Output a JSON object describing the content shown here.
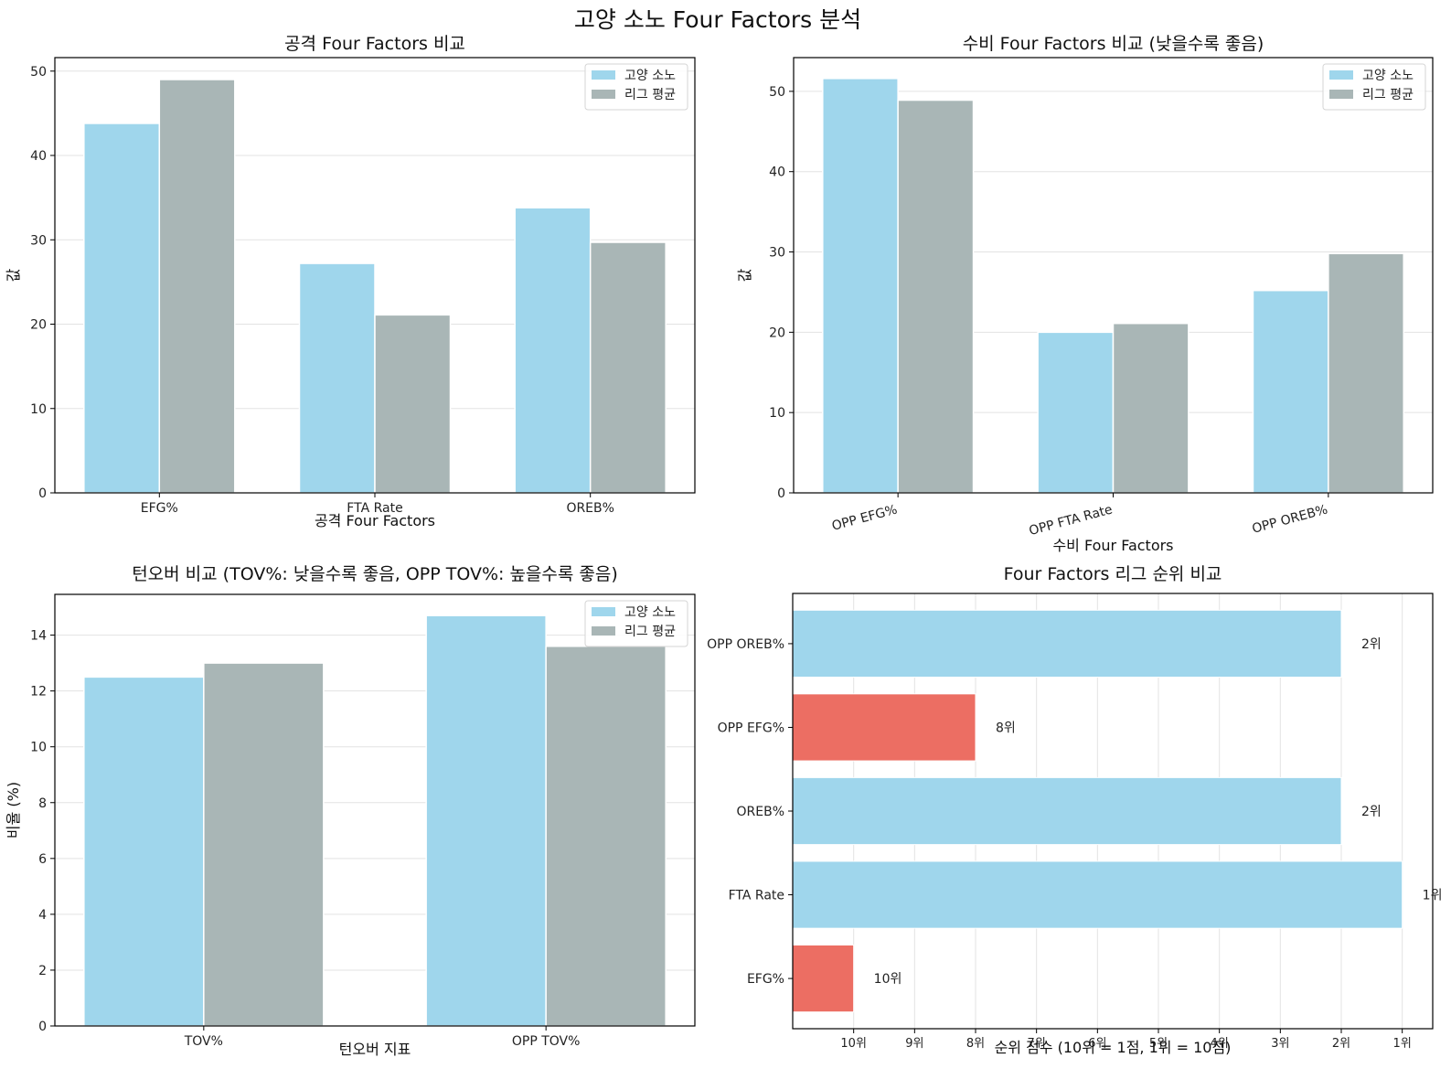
{
  "suptitle": "고양 소노 Four Factors 분석",
  "colors": {
    "team": "#9fd6ec",
    "league": "#a9b6b6",
    "bad_rank": "#ec6e63",
    "good_rank": "#9fd6ec"
  },
  "chart_data": [
    {
      "id": "offense",
      "type": "bar",
      "title": "공격 Four Factors 비교",
      "xlabel": "공격 Four Factors",
      "ylabel": "값",
      "categories": [
        "EFG%",
        "FTA Rate",
        "OREB%"
      ],
      "series": [
        {
          "name": "고양 소노",
          "values": [
            43.8,
            27.2,
            33.8
          ]
        },
        {
          "name": "리그 평균",
          "values": [
            49.0,
            21.1,
            29.7
          ]
        }
      ],
      "ylim": [
        0,
        51.6
      ],
      "yticks": [
        0,
        10,
        20,
        30,
        40,
        50
      ],
      "grid": "y",
      "legend": "top-right",
      "xtick_rotation": 0
    },
    {
      "id": "defense",
      "type": "bar",
      "title": "수비 Four Factors 비교 (낮을수록 좋음)",
      "xlabel": "수비 Four Factors",
      "ylabel": "값",
      "categories": [
        "OPP EFG%",
        "OPP FTA Rate",
        "OPP OREB%"
      ],
      "series": [
        {
          "name": "고양 소노",
          "values": [
            51.6,
            20.0,
            25.2
          ]
        },
        {
          "name": "리그 평균",
          "values": [
            48.9,
            21.1,
            29.8
          ]
        }
      ],
      "ylim": [
        0,
        54.2
      ],
      "yticks": [
        0,
        10,
        20,
        30,
        40,
        50
      ],
      "grid": "y",
      "legend": "top-right",
      "xtick_rotation": -15
    },
    {
      "id": "turnover",
      "type": "bar",
      "title": "턴오버 비교 (TOV%: 낮을수록 좋음, OPP TOV%: 높을수록 좋음)",
      "xlabel": "턴오버 지표",
      "ylabel": "비율 (%)",
      "categories": [
        "TOV%",
        "OPP TOV%"
      ],
      "series": [
        {
          "name": "고양 소노",
          "values": [
            12.5,
            14.7
          ]
        },
        {
          "name": "리그 평균",
          "values": [
            13.0,
            13.6
          ]
        }
      ],
      "ylim": [
        0,
        15.46
      ],
      "yticks": [
        0,
        2,
        4,
        6,
        8,
        10,
        12,
        14
      ],
      "grid": "y",
      "legend": "top-right",
      "xtick_rotation": 0
    },
    {
      "id": "rank",
      "type": "barh",
      "title": "Four Factors 리그 순위 비교",
      "xlabel": "순위 점수 (10위 = 1점, 1위 = 10점)",
      "ylabel": "",
      "categories": [
        "EFG%",
        "FTA Rate",
        "OREB%",
        "OPP EFG%",
        "OPP OREB%"
      ],
      "ranks": [
        10,
        1,
        2,
        8,
        2
      ],
      "values": [
        1,
        10,
        9,
        3,
        9
      ],
      "bar_labels": [
        "10위",
        "1위",
        "2위",
        "8위",
        "2위"
      ],
      "xlim": [
        0,
        10.5
      ],
      "xticks": [
        1,
        2,
        3,
        4,
        5,
        6,
        7,
        8,
        9,
        10
      ],
      "xtick_labels": [
        "10위",
        "9위",
        "8위",
        "7위",
        "6위",
        "5위",
        "4위",
        "3위",
        "2위",
        "1위"
      ],
      "grid": "x",
      "rank_threshold_good": 5
    }
  ]
}
